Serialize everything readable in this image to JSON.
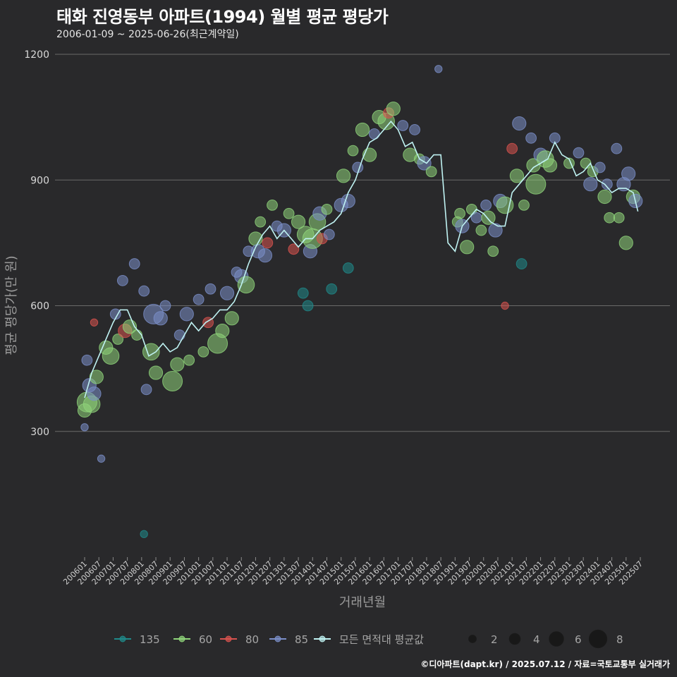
{
  "header": {
    "title": "태화 진영동부 아파트(1994) 월별 평균 평당가",
    "subtitle": "2006-01-09 ~ 2025-06-26(최근계약일)"
  },
  "caption": "©디아파트(dapt.kr) / 2025.07.12 / 자료=국토교통부 실거래가",
  "colors": {
    "background": "#29292b",
    "grid": "#6a6a6a",
    "s135": "#1f8a8a",
    "s60": "#8fd47a",
    "s80": "#d9534f",
    "s85": "#7b8fc9",
    "avg": "#bff2f2"
  },
  "chart_data": {
    "type": "scatter",
    "title": "태화 진영동부 아파트(1994) 월별 평균 평당가",
    "subtitle": "2006-01-09 ~ 2025-06-26(최근계약일)",
    "xlabel": "거래년월",
    "ylabel": "평균 평당가(만 원)",
    "ylim": [
      0,
      1200
    ],
    "yticks": [
      300,
      600,
      900,
      1200
    ],
    "xlim": [
      "2006-01",
      "2025-07"
    ],
    "xticks": [
      "200601",
      "200607",
      "200701",
      "200707",
      "200801",
      "200807",
      "200901",
      "200907",
      "201001",
      "201007",
      "201101",
      "201107",
      "201201",
      "201207",
      "201301",
      "201307",
      "201401",
      "201407",
      "201501",
      "201507",
      "201601",
      "201607",
      "201701",
      "201707",
      "201801",
      "201807",
      "201901",
      "201907",
      "202001",
      "202007",
      "202101",
      "202107",
      "202201",
      "202207",
      "202301",
      "202307",
      "202401",
      "202407",
      "202501",
      "202507"
    ],
    "grid": true,
    "legend_position": "bottom",
    "series_legend": [
      {
        "name": "135",
        "color": "#1f8a8a"
      },
      {
        "name": "60",
        "color": "#8fd47a"
      },
      {
        "name": "80",
        "color": "#d9534f"
      },
      {
        "name": "85",
        "color": "#7b8fc9"
      },
      {
        "name": "모든 면적대 평균값",
        "color": "#bff2f2"
      }
    ],
    "size_legend": [
      2,
      4,
      6,
      8
    ],
    "average_line": {
      "name": "모든 면적대 평균값",
      "x": [
        "2006-01",
        "2006-04",
        "2006-07",
        "2006-10",
        "2007-01",
        "2007-04",
        "2007-07",
        "2007-10",
        "2008-01",
        "2008-04",
        "2008-07",
        "2008-10",
        "2009-01",
        "2009-04",
        "2009-07",
        "2009-10",
        "2010-01",
        "2010-04",
        "2010-07",
        "2010-10",
        "2011-01",
        "2011-04",
        "2011-07",
        "2011-10",
        "2012-01",
        "2012-04",
        "2012-07",
        "2012-10",
        "2013-01",
        "2013-04",
        "2013-07",
        "2013-10",
        "2014-01",
        "2014-04",
        "2014-07",
        "2014-10",
        "2015-01",
        "2015-04",
        "2015-07",
        "2015-10",
        "2016-01",
        "2016-04",
        "2016-07",
        "2016-10",
        "2017-01",
        "2017-04",
        "2017-07",
        "2017-10",
        "2018-01",
        "2018-04",
        "2018-07",
        "2018-10",
        "2019-01",
        "2019-04",
        "2019-07",
        "2019-10",
        "2020-01",
        "2020-04",
        "2020-07",
        "2020-10",
        "2021-01",
        "2021-04",
        "2021-07",
        "2021-10",
        "2022-01",
        "2022-04",
        "2022-07",
        "2022-10",
        "2023-01",
        "2023-04",
        "2023-07",
        "2023-10",
        "2024-01",
        "2024-04",
        "2024-07",
        "2024-10",
        "2025-01",
        "2025-04",
        "2025-06"
      ],
      "y": [
        380,
        440,
        480,
        520,
        560,
        590,
        590,
        550,
        530,
        480,
        490,
        510,
        490,
        500,
        530,
        560,
        540,
        560,
        570,
        590,
        590,
        610,
        650,
        700,
        740,
        770,
        790,
        760,
        780,
        760,
        740,
        760,
        760,
        780,
        790,
        800,
        820,
        870,
        900,
        950,
        990,
        1000,
        1020,
        1040,
        1020,
        980,
        990,
        950,
        940,
        960,
        960,
        750,
        730,
        790,
        810,
        830,
        820,
        800,
        790,
        790,
        870,
        890,
        910,
        930,
        940,
        950,
        990,
        960,
        950,
        910,
        920,
        940,
        900,
        890,
        870,
        880,
        880,
        870,
        825
      ]
    },
    "points": [
      {
        "s": "60",
        "x": "2006-01",
        "y": 350,
        "n": 3
      },
      {
        "s": "60",
        "x": "2006-02",
        "y": 370,
        "n": 5
      },
      {
        "s": "85",
        "x": "2006-02",
        "y": 470,
        "n": 2
      },
      {
        "s": "85",
        "x": "2006-03",
        "y": 410,
        "n": 3
      },
      {
        "s": "60",
        "x": "2006-04",
        "y": 365,
        "n": 4
      },
      {
        "s": "85",
        "x": "2006-05",
        "y": 390,
        "n": 3
      },
      {
        "s": "80",
        "x": "2006-05",
        "y": 560,
        "n": 1
      },
      {
        "s": "60",
        "x": "2006-06",
        "y": 430,
        "n": 3
      },
      {
        "s": "85",
        "x": "2006-01",
        "y": 310,
        "n": 1
      },
      {
        "s": "85",
        "x": "2006-08",
        "y": 235,
        "n": 1
      },
      {
        "s": "60",
        "x": "2006-10",
        "y": 500,
        "n": 3
      },
      {
        "s": "60",
        "x": "2006-12",
        "y": 480,
        "n": 4
      },
      {
        "s": "85",
        "x": "2007-02",
        "y": 580,
        "n": 2
      },
      {
        "s": "60",
        "x": "2007-03",
        "y": 520,
        "n": 2
      },
      {
        "s": "85",
        "x": "2007-05",
        "y": 660,
        "n": 2
      },
      {
        "s": "80",
        "x": "2007-06",
        "y": 540,
        "n": 3
      },
      {
        "s": "60",
        "x": "2007-08",
        "y": 550,
        "n": 3
      },
      {
        "s": "85",
        "x": "2007-10",
        "y": 700,
        "n": 2
      },
      {
        "s": "60",
        "x": "2007-11",
        "y": 530,
        "n": 2
      },
      {
        "s": "85",
        "x": "2008-02",
        "y": 635,
        "n": 2
      },
      {
        "s": "85",
        "x": "2008-03",
        "y": 400,
        "n": 2
      },
      {
        "s": "60",
        "x": "2008-05",
        "y": 490,
        "n": 4
      },
      {
        "s": "85",
        "x": "2008-06",
        "y": 580,
        "n": 5
      },
      {
        "s": "60",
        "x": "2008-07",
        "y": 440,
        "n": 3
      },
      {
        "s": "85",
        "x": "2008-09",
        "y": 570,
        "n": 3
      },
      {
        "s": "85",
        "x": "2008-11",
        "y": 600,
        "n": 2
      },
      {
        "s": "135",
        "x": "2008-02",
        "y": 55,
        "n": 1
      },
      {
        "s": "60",
        "x": "2009-02",
        "y": 420,
        "n": 5
      },
      {
        "s": "60",
        "x": "2009-04",
        "y": 460,
        "n": 3
      },
      {
        "s": "85",
        "x": "2009-05",
        "y": 530,
        "n": 2
      },
      {
        "s": "85",
        "x": "2009-08",
        "y": 580,
        "n": 3
      },
      {
        "s": "60",
        "x": "2009-09",
        "y": 470,
        "n": 2
      },
      {
        "s": "85",
        "x": "2010-01",
        "y": 615,
        "n": 2
      },
      {
        "s": "60",
        "x": "2010-03",
        "y": 490,
        "n": 2
      },
      {
        "s": "80",
        "x": "2010-05",
        "y": 560,
        "n": 2
      },
      {
        "s": "85",
        "x": "2010-06",
        "y": 640,
        "n": 2
      },
      {
        "s": "60",
        "x": "2010-09",
        "y": 510,
        "n": 5
      },
      {
        "s": "60",
        "x": "2010-11",
        "y": 540,
        "n": 3
      },
      {
        "s": "85",
        "x": "2011-01",
        "y": 630,
        "n": 3
      },
      {
        "s": "60",
        "x": "2011-03",
        "y": 570,
        "n": 3
      },
      {
        "s": "85",
        "x": "2011-05",
        "y": 680,
        "n": 2
      },
      {
        "s": "85",
        "x": "2011-07",
        "y": 670,
        "n": 3
      },
      {
        "s": "60",
        "x": "2011-09",
        "y": 650,
        "n": 4
      },
      {
        "s": "85",
        "x": "2011-10",
        "y": 730,
        "n": 2
      },
      {
        "s": "60",
        "x": "2012-01",
        "y": 760,
        "n": 3
      },
      {
        "s": "85",
        "x": "2012-02",
        "y": 730,
        "n": 3
      },
      {
        "s": "60",
        "x": "2012-03",
        "y": 800,
        "n": 2
      },
      {
        "s": "80",
        "x": "2012-06",
        "y": 750,
        "n": 2
      },
      {
        "s": "85",
        "x": "2012-05",
        "y": 720,
        "n": 3
      },
      {
        "s": "60",
        "x": "2012-08",
        "y": 840,
        "n": 2
      },
      {
        "s": "85",
        "x": "2012-10",
        "y": 790,
        "n": 2
      },
      {
        "s": "85",
        "x": "2013-01",
        "y": 780,
        "n": 3
      },
      {
        "s": "60",
        "x": "2013-03",
        "y": 820,
        "n": 2
      },
      {
        "s": "80",
        "x": "2013-05",
        "y": 735,
        "n": 2
      },
      {
        "s": "60",
        "x": "2013-07",
        "y": 800,
        "n": 3
      },
      {
        "s": "135",
        "x": "2013-09",
        "y": 630,
        "n": 2
      },
      {
        "s": "60",
        "x": "2013-10",
        "y": 770,
        "n": 4
      },
      {
        "s": "85",
        "x": "2013-12",
        "y": 730,
        "n": 3
      },
      {
        "s": "135",
        "x": "2013-11",
        "y": 600,
        "n": 2
      },
      {
        "s": "60",
        "x": "2014-01",
        "y": 760,
        "n": 5
      },
      {
        "s": "60",
        "x": "2014-03",
        "y": 800,
        "n": 4
      },
      {
        "s": "85",
        "x": "2014-04",
        "y": 820,
        "n": 3
      },
      {
        "s": "80",
        "x": "2014-05",
        "y": 760,
        "n": 2
      },
      {
        "s": "60",
        "x": "2014-07",
        "y": 830,
        "n": 2
      },
      {
        "s": "85",
        "x": "2014-08",
        "y": 770,
        "n": 2
      },
      {
        "s": "135",
        "x": "2014-09",
        "y": 640,
        "n": 2
      },
      {
        "s": "85",
        "x": "2015-01",
        "y": 840,
        "n": 3
      },
      {
        "s": "60",
        "x": "2015-02",
        "y": 910,
        "n": 3
      },
      {
        "s": "85",
        "x": "2015-04",
        "y": 850,
        "n": 3
      },
      {
        "s": "135",
        "x": "2015-04",
        "y": 690,
        "n": 2
      },
      {
        "s": "60",
        "x": "2015-06",
        "y": 970,
        "n": 2
      },
      {
        "s": "85",
        "x": "2015-08",
        "y": 930,
        "n": 2
      },
      {
        "s": "60",
        "x": "2015-10",
        "y": 1020,
        "n": 3
      },
      {
        "s": "60",
        "x": "2016-01",
        "y": 960,
        "n": 3
      },
      {
        "s": "85",
        "x": "2016-03",
        "y": 1010,
        "n": 2
      },
      {
        "s": "60",
        "x": "2016-05",
        "y": 1050,
        "n": 3
      },
      {
        "s": "60",
        "x": "2016-08",
        "y": 1040,
        "n": 4
      },
      {
        "s": "80",
        "x": "2016-09",
        "y": 1060,
        "n": 2
      },
      {
        "s": "60",
        "x": "2016-11",
        "y": 1070,
        "n": 3
      },
      {
        "s": "85",
        "x": "2017-03",
        "y": 1030,
        "n": 2
      },
      {
        "s": "60",
        "x": "2017-06",
        "y": 960,
        "n": 3
      },
      {
        "s": "85",
        "x": "2017-08",
        "y": 1020,
        "n": 2
      },
      {
        "s": "60",
        "x": "2017-10",
        "y": 950,
        "n": 2
      },
      {
        "s": "85",
        "x": "2017-12",
        "y": 940,
        "n": 3
      },
      {
        "s": "60",
        "x": "2018-03",
        "y": 920,
        "n": 2
      },
      {
        "s": "85",
        "x": "2018-06",
        "y": 1165,
        "n": 1
      },
      {
        "s": "60",
        "x": "2019-02",
        "y": 800,
        "n": 2
      },
      {
        "s": "60",
        "x": "2019-03",
        "y": 820,
        "n": 2
      },
      {
        "s": "85",
        "x": "2019-04",
        "y": 790,
        "n": 3
      },
      {
        "s": "60",
        "x": "2019-06",
        "y": 740,
        "n": 3
      },
      {
        "s": "60",
        "x": "2019-08",
        "y": 830,
        "n": 2
      },
      {
        "s": "85",
        "x": "2019-10",
        "y": 810,
        "n": 2
      },
      {
        "s": "60",
        "x": "2019-12",
        "y": 780,
        "n": 2
      },
      {
        "s": "85",
        "x": "2020-02",
        "y": 840,
        "n": 2
      },
      {
        "s": "60",
        "x": "2020-03",
        "y": 810,
        "n": 3
      },
      {
        "s": "60",
        "x": "2020-05",
        "y": 730,
        "n": 2
      },
      {
        "s": "85",
        "x": "2020-06",
        "y": 780,
        "n": 3
      },
      {
        "s": "85",
        "x": "2020-08",
        "y": 850,
        "n": 3
      },
      {
        "s": "60",
        "x": "2020-10",
        "y": 840,
        "n": 4
      },
      {
        "s": "80",
        "x": "2020-10",
        "y": 600,
        "n": 1
      },
      {
        "s": "80",
        "x": "2021-01",
        "y": 975,
        "n": 2
      },
      {
        "s": "60",
        "x": "2021-03",
        "y": 910,
        "n": 3
      },
      {
        "s": "85",
        "x": "2021-04",
        "y": 1035,
        "n": 3
      },
      {
        "s": "60",
        "x": "2021-06",
        "y": 840,
        "n": 2
      },
      {
        "s": "135",
        "x": "2021-05",
        "y": 700,
        "n": 2
      },
      {
        "s": "85",
        "x": "2021-09",
        "y": 1000,
        "n": 2
      },
      {
        "s": "60",
        "x": "2021-10",
        "y": 935,
        "n": 3
      },
      {
        "s": "60",
        "x": "2021-11",
        "y": 890,
        "n": 5
      },
      {
        "s": "85",
        "x": "2022-01",
        "y": 960,
        "n": 3
      },
      {
        "s": "60",
        "x": "2022-03",
        "y": 950,
        "n": 4
      },
      {
        "s": "60",
        "x": "2022-05",
        "y": 935,
        "n": 3
      },
      {
        "s": "85",
        "x": "2022-07",
        "y": 1000,
        "n": 2
      },
      {
        "s": "60",
        "x": "2023-01",
        "y": 940,
        "n": 2
      },
      {
        "s": "85",
        "x": "2023-05",
        "y": 965,
        "n": 2
      },
      {
        "s": "60",
        "x": "2023-08",
        "y": 940,
        "n": 2
      },
      {
        "s": "85",
        "x": "2023-10",
        "y": 890,
        "n": 3
      },
      {
        "s": "60",
        "x": "2023-11",
        "y": 920,
        "n": 2
      },
      {
        "s": "85",
        "x": "2024-02",
        "y": 930,
        "n": 2
      },
      {
        "s": "60",
        "x": "2024-04",
        "y": 860,
        "n": 3
      },
      {
        "s": "85",
        "x": "2024-05",
        "y": 890,
        "n": 2
      },
      {
        "s": "60",
        "x": "2024-06",
        "y": 810,
        "n": 2
      },
      {
        "s": "85",
        "x": "2024-09",
        "y": 975,
        "n": 2
      },
      {
        "s": "60",
        "x": "2024-10",
        "y": 810,
        "n": 2
      },
      {
        "s": "85",
        "x": "2024-12",
        "y": 890,
        "n": 3
      },
      {
        "s": "85",
        "x": "2025-02",
        "y": 915,
        "n": 3
      },
      {
        "s": "60",
        "x": "2025-01",
        "y": 750,
        "n": 3
      },
      {
        "s": "60",
        "x": "2025-04",
        "y": 860,
        "n": 3
      },
      {
        "s": "85",
        "x": "2025-05",
        "y": 850,
        "n": 3
      }
    ]
  }
}
